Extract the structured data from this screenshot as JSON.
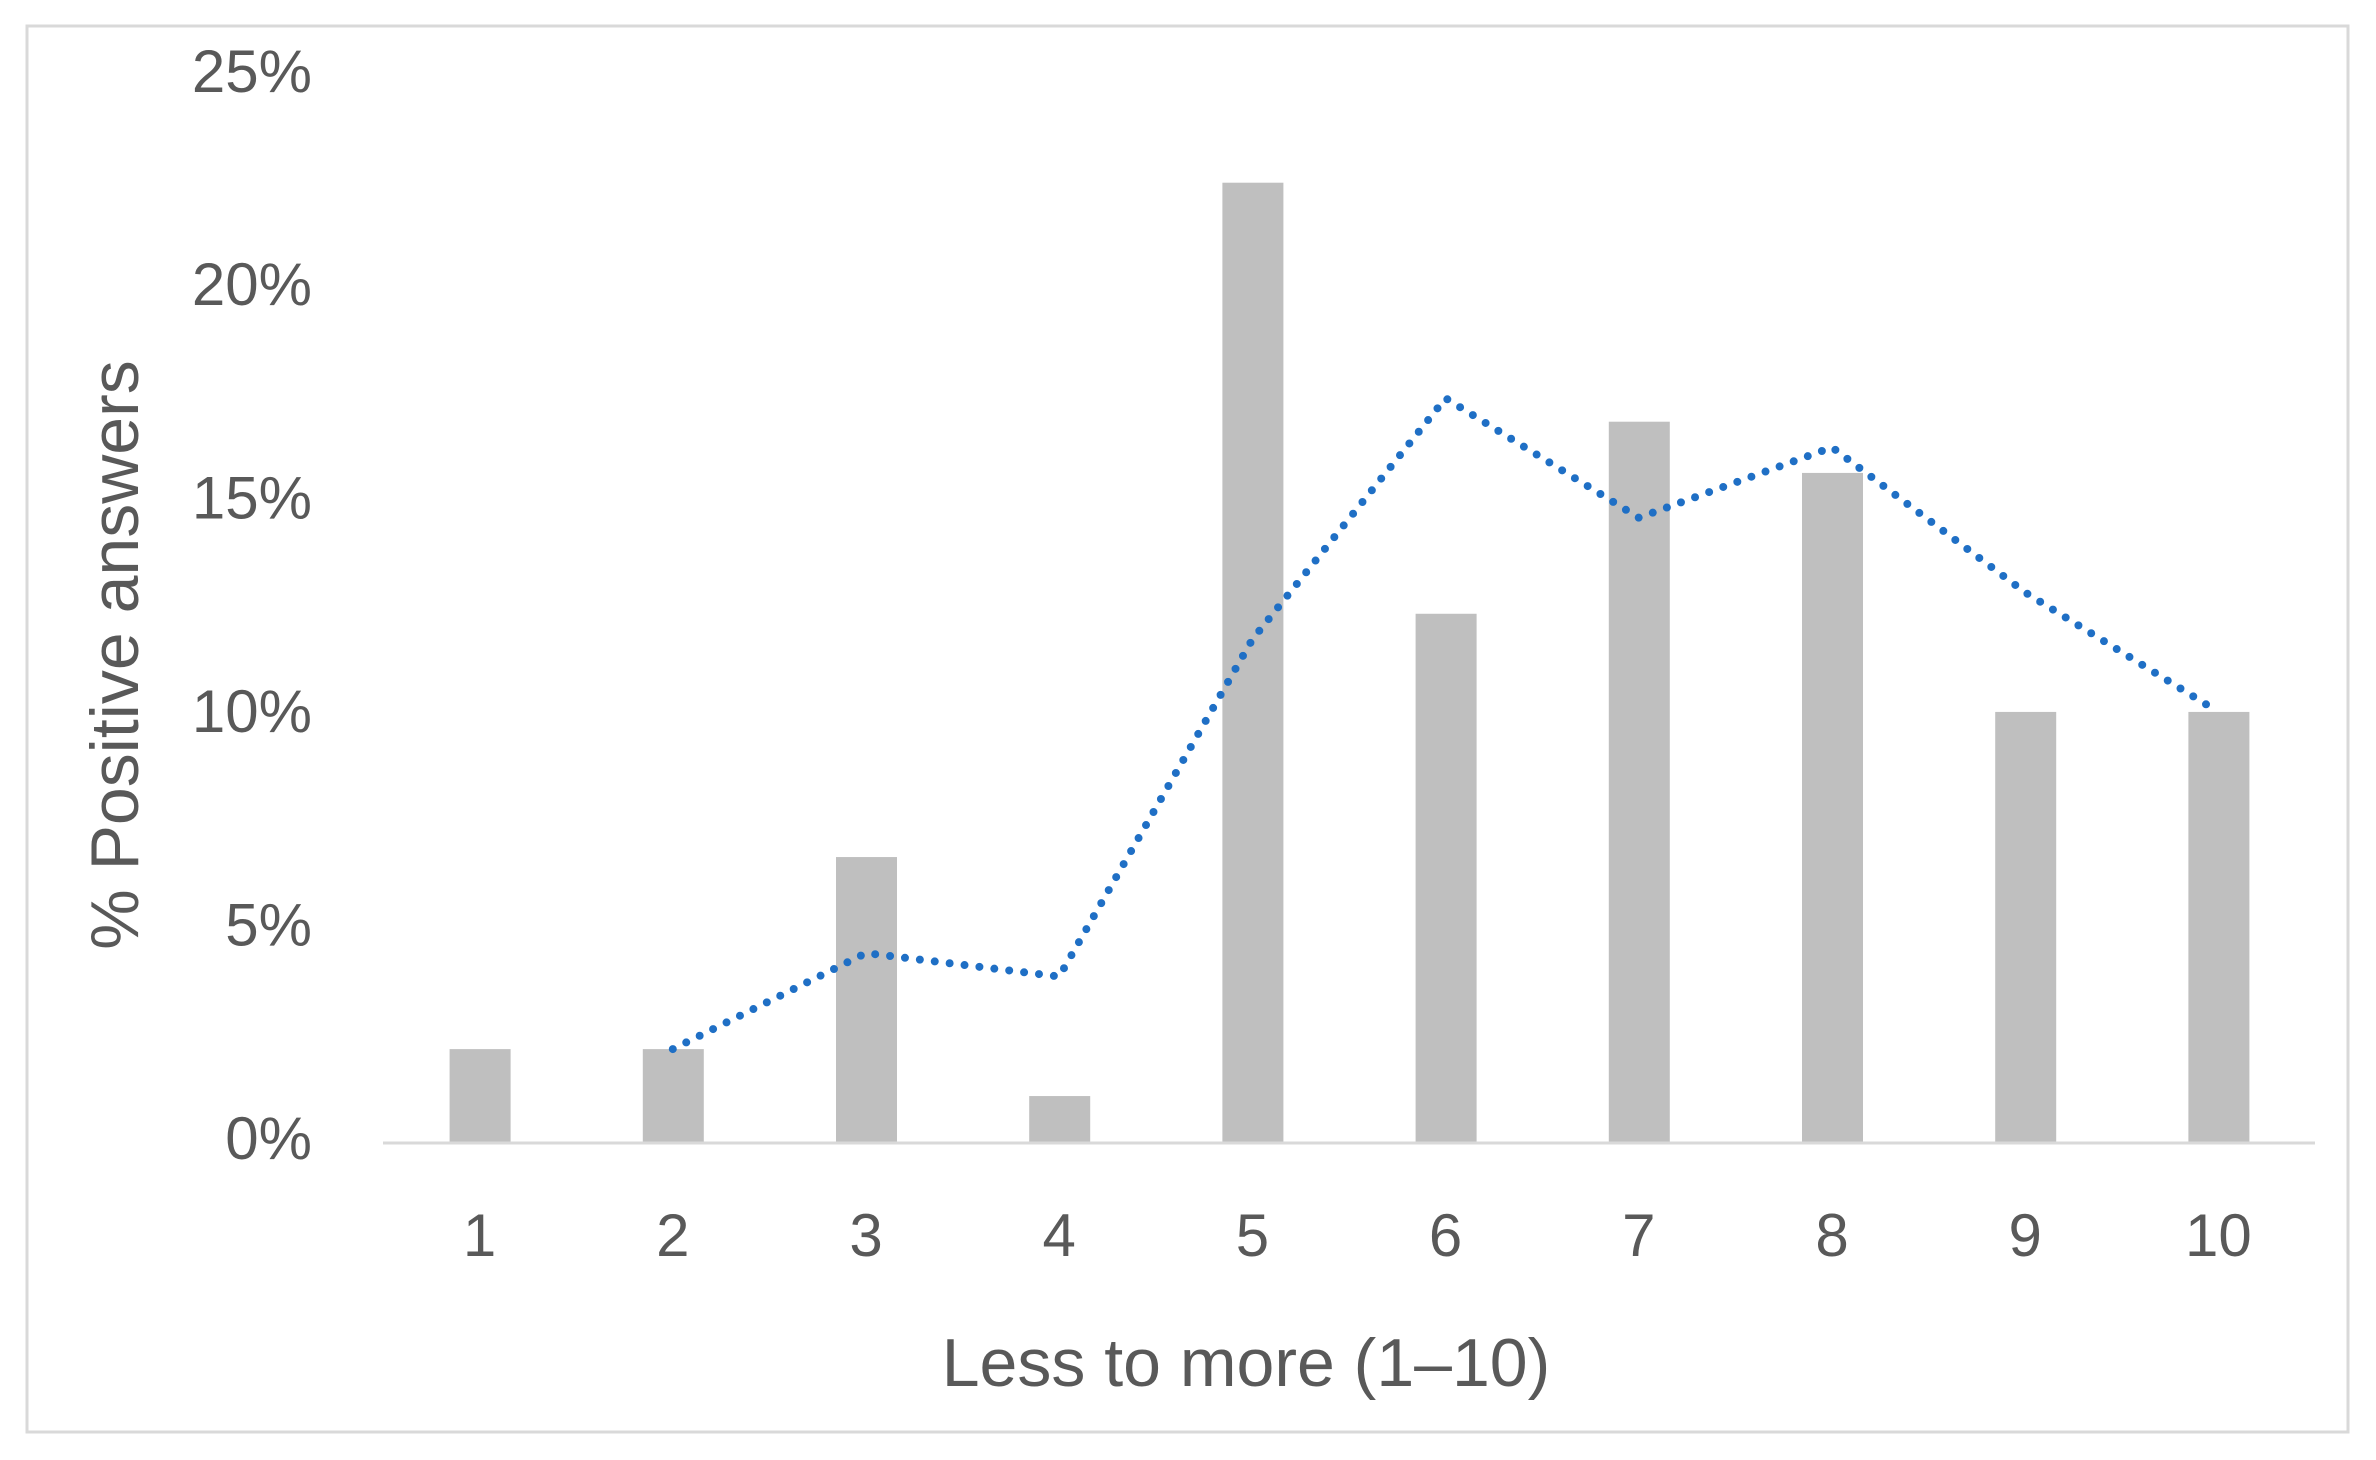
{
  "chart_data": {
    "type": "bar",
    "x_label": "Less to more (1–10)",
    "y_label": "% Positive answers",
    "categories": [
      "1",
      "2",
      "3",
      "4",
      "5",
      "6",
      "7",
      "8",
      "9",
      "10"
    ],
    "series": [
      {
        "type": "bar",
        "color": "#bfbfbf",
        "values": [
          2.2,
          2.2,
          6.7,
          1.1,
          22.5,
          12.4,
          16.9,
          15.7,
          10.1,
          10.1
        ]
      },
      {
        "type": "line",
        "color": "#1f6fc5",
        "dotted": true,
        "values": [
          null,
          2.2,
          4.45,
          3.9,
          11.8,
          17.45,
          14.65,
          16.3,
          12.9,
          10.1
        ]
      }
    ],
    "ylim": [
      0,
      25
    ],
    "yticks": [
      {
        "value": 0,
        "label": "0%"
      },
      {
        "value": 5,
        "label": "5%"
      },
      {
        "value": 10,
        "label": "10%"
      },
      {
        "value": 15,
        "label": "15%"
      },
      {
        "value": 20,
        "label": "20%"
      },
      {
        "value": 25,
        "label": "25%"
      }
    ],
    "grid": false
  }
}
